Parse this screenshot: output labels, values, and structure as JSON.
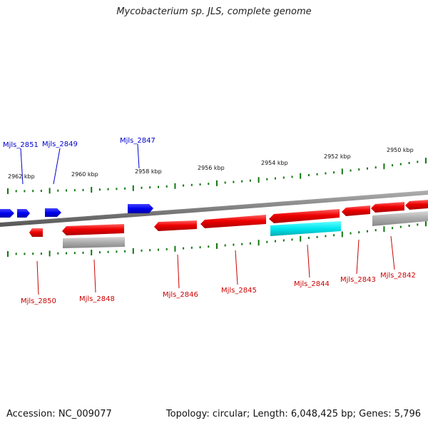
{
  "title": "Mycobacterium sp. JLS, complete genome",
  "footer": {
    "accession": "Accession: NC_009077",
    "summary": "Topology: circular; Length: 6,048,425 bp; Genes: 5,796"
  },
  "scale_labels": [
    "2962 kbp",
    "2960 kbp",
    "2958 kbp",
    "2956 kbp",
    "2954 kbp",
    "2952 kbp",
    "2950 kbp"
  ],
  "genes_top": [
    "Mjls_2851",
    "Mjls_2849",
    "Mjls_2847"
  ],
  "genes_bottom": [
    "Mjls_2850",
    "Mjls_2848",
    "Mjls_2846",
    "Mjls_2845",
    "Mjls_2844",
    "Mjls_2843",
    "Mjls_2842"
  ],
  "colors": {
    "forward_strand": "#0000ee",
    "reverse_strand": "#ee0000",
    "rna": "#00e5ee",
    "pseudo": "#aaaaaa",
    "backbone": "#808080",
    "ticks": "#117711"
  }
}
